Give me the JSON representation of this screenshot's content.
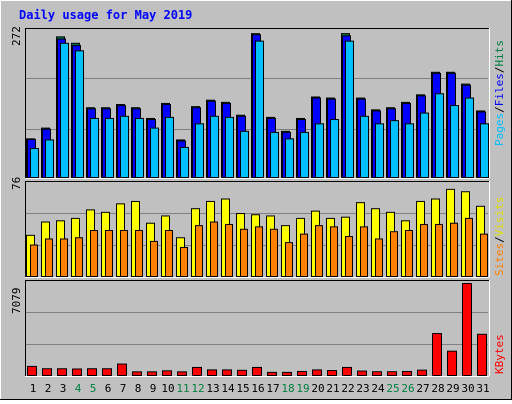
{
  "chart_data": [
    {
      "type": "bar",
      "panel": "hits-files-pages",
      "title": "Daily usage for May 2019",
      "ytick": "272",
      "ymax": 272,
      "right_label": {
        "pages": "Pages",
        "files": "Files",
        "hits": "Hits",
        "sep": "/"
      },
      "categories": [
        "1",
        "2",
        "3",
        "4",
        "5",
        "6",
        "7",
        "8",
        "9",
        "10",
        "11",
        "12",
        "13",
        "14",
        "15",
        "16",
        "17",
        "18",
        "19",
        "20",
        "21",
        "22",
        "23",
        "24",
        "25",
        "26",
        "27",
        "28",
        "29",
        "30",
        "31"
      ],
      "series": [
        {
          "name": "Hits",
          "values": [
            72,
            92,
            262,
            250,
            130,
            130,
            136,
            130,
            110,
            138,
            70,
            132,
            144,
            140,
            116,
            268,
            112,
            86,
            110,
            150,
            148,
            268,
            148,
            126,
            130,
            140,
            154,
            196,
            196,
            174,
            124
          ]
        },
        {
          "name": "Files",
          "values": [
            71,
            90,
            258,
            246,
            128,
            128,
            134,
            128,
            108,
            136,
            68,
            130,
            142,
            138,
            114,
            266,
            110,
            84,
            108,
            148,
            146,
            264,
            146,
            124,
            128,
            138,
            152,
            194,
            194,
            172,
            122
          ]
        },
        {
          "name": "Pages",
          "values": [
            54,
            70,
            250,
            236,
            110,
            110,
            114,
            110,
            92,
            112,
            56,
            100,
            114,
            112,
            86,
            254,
            84,
            72,
            84,
            100,
            108,
            254,
            114,
            100,
            106,
            100,
            120,
            156,
            134,
            148,
            100
          ]
        }
      ],
      "colors": {
        "hits": "#008040",
        "files": "#0000ff",
        "pages": "#00c0ff"
      }
    },
    {
      "type": "bar",
      "panel": "visits-sites",
      "ytick": "76",
      "ymax": 76,
      "right_label": {
        "sites": "Sites",
        "visits": "Visits",
        "sep": "/"
      },
      "categories": [
        "1",
        "2",
        "3",
        "4",
        "5",
        "6",
        "7",
        "8",
        "9",
        "10",
        "11",
        "12",
        "13",
        "14",
        "15",
        "16",
        "17",
        "18",
        "19",
        "20",
        "21",
        "22",
        "23",
        "24",
        "25",
        "26",
        "27",
        "28",
        "29",
        "30",
        "31"
      ],
      "series": [
        {
          "name": "Visits",
          "values": [
            34,
            45,
            46,
            48,
            55,
            53,
            60,
            62,
            44,
            50,
            32,
            56,
            62,
            64,
            52,
            51,
            50,
            42,
            48,
            54,
            48,
            49,
            61,
            56,
            53,
            46,
            62,
            64,
            72,
            70,
            58
          ]
        },
        {
          "name": "Sites",
          "values": [
            26,
            31,
            31,
            32,
            38,
            38,
            38,
            38,
            29,
            38,
            24,
            42,
            45,
            43,
            39,
            41,
            39,
            28,
            35,
            42,
            41,
            33,
            41,
            31,
            37,
            38,
            43,
            43,
            44,
            48,
            35
          ]
        }
      ],
      "colors": {
        "visits": "#ffff00",
        "sites": "#ff8000"
      }
    },
    {
      "type": "bar",
      "panel": "kbytes",
      "ytick": "7079",
      "ymax": 7079,
      "right_label": {
        "kbytes": "KBytes"
      },
      "categories": [
        "1",
        "2",
        "3",
        "4",
        "5",
        "6",
        "7",
        "8",
        "9",
        "10",
        "11",
        "12",
        "13",
        "14",
        "15",
        "16",
        "17",
        "18",
        "19",
        "20",
        "21",
        "22",
        "23",
        "24",
        "25",
        "26",
        "27",
        "28",
        "29",
        "30",
        "31"
      ],
      "series": [
        {
          "name": "KBytes",
          "values": [
            700,
            520,
            520,
            500,
            520,
            520,
            880,
            280,
            280,
            360,
            280,
            620,
            430,
            430,
            400,
            620,
            240,
            240,
            310,
            430,
            380,
            620,
            340,
            290,
            290,
            310,
            410,
            3230,
            1870,
            7079,
            3170
          ]
        }
      ],
      "colors": {
        "kbytes": "#ff0000"
      }
    }
  ],
  "weekend_days": [
    "4",
    "5",
    "11",
    "12",
    "18",
    "19",
    "25",
    "26"
  ],
  "colors": {
    "background": "#c0c0c0",
    "plot": "#c0c0c0",
    "title": "#0000ff",
    "weekday_label": "#000000",
    "weekend_label": "#008040",
    "grid": "#808080"
  }
}
